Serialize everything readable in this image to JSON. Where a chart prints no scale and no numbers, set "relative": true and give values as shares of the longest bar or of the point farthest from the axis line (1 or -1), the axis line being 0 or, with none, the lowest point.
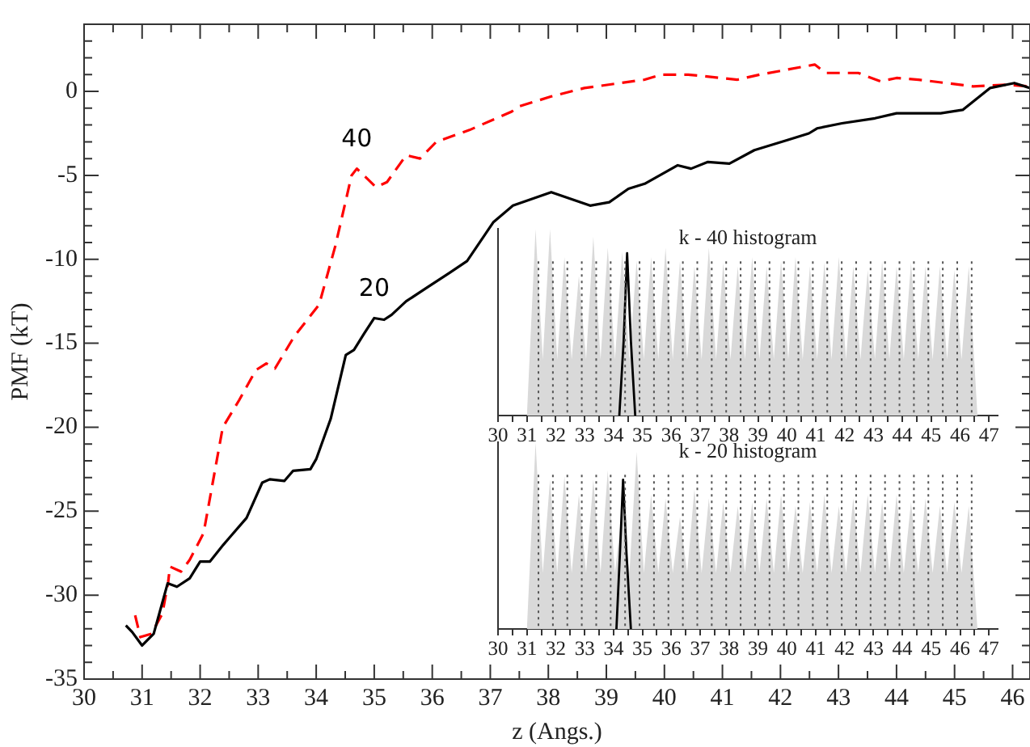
{
  "chart_data": [
    {
      "type": "line",
      "xlabel": "z (Angs.)",
      "ylabel": "PMF (kT)",
      "xlim": [
        30,
        46.3
      ],
      "ylim": [
        -35,
        4
      ],
      "xticks": [
        30,
        {
          "value": 30.5,
          "label": null
        },
        31,
        {
          "value": 31.5,
          "label": null
        },
        32,
        {
          "value": 32.5,
          "label": null
        },
        33,
        {
          "value": 33.5,
          "label": null
        },
        34,
        {
          "value": 34.5,
          "label": null
        },
        35,
        {
          "value": 35.5,
          "label": null
        },
        36,
        {
          "value": 36.5,
          "label": null
        },
        37,
        {
          "value": 37.5,
          "label": null
        },
        38,
        {
          "value": 38.5,
          "label": null
        },
        39,
        {
          "value": 39.5,
          "label": null
        },
        40,
        {
          "value": 40.5,
          "label": null
        },
        41,
        {
          "value": 41.5,
          "label": null
        },
        42,
        {
          "value": 42.5,
          "label": null
        },
        43,
        {
          "value": 43.5,
          "label": null
        },
        44,
        {
          "value": 44.5,
          "label": null
        },
        45,
        {
          "value": 45.5,
          "label": null
        },
        46
      ],
      "yticks": [
        -35,
        {
          "value": -34,
          "label": null
        },
        {
          "value": -33,
          "label": null
        },
        {
          "value": -32,
          "label": null
        },
        {
          "value": -31,
          "label": null
        },
        -30,
        {
          "value": -29,
          "label": null
        },
        {
          "value": -28,
          "label": null
        },
        {
          "value": -27,
          "label": null
        },
        {
          "value": -26,
          "label": null
        },
        -25,
        {
          "value": -24,
          "label": null
        },
        {
          "value": -23,
          "label": null
        },
        {
          "value": -22,
          "label": null
        },
        {
          "value": -21,
          "label": null
        },
        -20,
        {
          "value": -19,
          "label": null
        },
        {
          "value": -18,
          "label": null
        },
        {
          "value": -17,
          "label": null
        },
        {
          "value": -16,
          "label": null
        },
        -15,
        {
          "value": -14,
          "label": null
        },
        {
          "value": -13,
          "label": null
        },
        {
          "value": -12,
          "label": null
        },
        {
          "value": -11,
          "label": null
        },
        -10,
        {
          "value": -9,
          "label": null
        },
        {
          "value": -8,
          "label": null
        },
        {
          "value": -7,
          "label": null
        },
        {
          "value": -6,
          "label": null
        },
        -5,
        {
          "value": -4,
          "label": null
        },
        {
          "value": -3,
          "label": null
        },
        {
          "value": -2,
          "label": null
        },
        {
          "value": -1,
          "label": null
        },
        0,
        {
          "value": 1,
          "label": null
        },
        {
          "value": 2,
          "label": null
        },
        {
          "value": 3,
          "label": null
        }
      ],
      "grid": false,
      "legend": false,
      "marker": "none",
      "series": [
        {
          "color": "#ff0000",
          "line_style": "dashed",
          "x": [
            30.88,
            30.97,
            31.16,
            31.35,
            31.45,
            31.48,
            31.67,
            31.82,
            32.06,
            32.39,
            32.67,
            32.96,
            33.14,
            33.29,
            33.62,
            34.05,
            34.33,
            34.61,
            34.7,
            35.03,
            35.22,
            35.55,
            35.79,
            36.07,
            36.64,
            37.37,
            37.49,
            38.05,
            38.62,
            39.66,
            39.94,
            40.41,
            41.26,
            41.64,
            42.12,
            42.59,
            42.78,
            43.34,
            43.72,
            44.0,
            44.38,
            45.32,
            45.89,
            46.3
          ],
          "values": [
            -31.2,
            -32.5,
            -32.3,
            -31.1,
            -29.2,
            -28.3,
            -28.6,
            -27.9,
            -26.3,
            -20.0,
            -18.4,
            -16.6,
            -16.2,
            -16.5,
            -14.6,
            -12.7,
            -9.2,
            -5.0,
            -4.6,
            -5.7,
            -5.4,
            -3.8,
            -4.0,
            -3.0,
            -2.3,
            -1.2,
            -0.9,
            -0.3,
            0.2,
            0.7,
            1.0,
            1.0,
            0.7,
            1.0,
            1.3,
            1.6,
            1.1,
            1.1,
            0.6,
            0.8,
            0.7,
            0.3,
            0.4,
            0.3
          ]
        },
        {
          "color": "#000000",
          "line_style": "solid",
          "x": [
            30.72,
            30.83,
            31.0,
            31.2,
            31.44,
            31.6,
            31.82,
            32.0,
            32.17,
            32.4,
            32.5,
            32.8,
            33.07,
            33.2,
            33.45,
            33.6,
            33.9,
            34.0,
            34.25,
            34.51,
            34.65,
            34.83,
            35.0,
            35.17,
            35.3,
            35.55,
            35.9,
            36.3,
            36.6,
            37.05,
            37.39,
            38.05,
            38.72,
            39.05,
            39.38,
            39.66,
            40.23,
            40.46,
            40.75,
            41.12,
            41.55,
            42.12,
            42.49,
            42.63,
            43.06,
            43.63,
            44.0,
            44.38,
            44.76,
            45.14,
            45.61,
            46.03,
            46.3
          ],
          "values": [
            -31.8,
            -32.2,
            -33.0,
            -32.3,
            -29.3,
            -29.5,
            -29.0,
            -28.0,
            -28.0,
            -27.0,
            -26.6,
            -25.4,
            -23.3,
            -23.1,
            -23.2,
            -22.6,
            -22.5,
            -21.9,
            -19.5,
            -15.7,
            -15.4,
            -14.4,
            -13.5,
            -13.6,
            -13.3,
            -12.5,
            -11.7,
            -10.8,
            -10.1,
            -7.8,
            -6.8,
            -6.0,
            -6.8,
            -6.6,
            -5.8,
            -5.5,
            -4.4,
            -4.6,
            -4.2,
            -4.3,
            -3.5,
            -2.9,
            -2.5,
            -2.2,
            -1.9,
            -1.6,
            -1.3,
            -1.3,
            -1.3,
            -1.1,
            0.2,
            0.5,
            0.2
          ]
        }
      ],
      "annotations": [
        {
          "text": "40",
          "x": 34.7,
          "y": -4.6
        },
        {
          "text": "20",
          "x": 35.0,
          "y": -13.5
        }
      ]
    },
    {
      "type": "area",
      "title": "k - 40 histogram",
      "relative": true,
      "tick_labels": "x",
      "grid": false,
      "legend": false,
      "marker": "none",
      "xlim": [
        30,
        47.3
      ],
      "xticks": [
        30,
        {
          "value": 30.5,
          "label": null
        },
        31,
        {
          "value": 31.5,
          "label": null
        },
        32,
        {
          "value": 32.5,
          "label": null
        },
        33,
        {
          "value": 33.5,
          "label": null
        },
        34,
        {
          "value": 34.5,
          "label": null
        },
        35,
        {
          "value": 35.5,
          "label": null
        },
        36,
        {
          "value": 36.5,
          "label": null
        },
        37,
        {
          "value": 37.5,
          "label": null
        },
        38,
        {
          "value": 38.5,
          "label": null
        },
        39,
        {
          "value": 39.5,
          "label": null
        },
        40,
        {
          "value": 40.5,
          "label": null
        },
        41,
        {
          "value": 41.5,
          "label": null
        },
        42,
        {
          "value": 42.5,
          "label": null
        },
        43,
        {
          "value": 43.5,
          "label": null
        },
        44,
        {
          "value": 44.5,
          "label": null
        },
        45,
        {
          "value": 45.5,
          "label": null
        },
        46,
        {
          "value": 46.5,
          "label": null
        },
        47
      ],
      "series": [
        {
          "color": "#d9d9d9",
          "x": [
            31.0,
            31.3,
            31.55,
            31.8,
            32.05,
            32.3,
            32.55,
            32.8,
            33.05,
            33.3,
            33.55,
            33.8,
            34.05,
            34.3,
            34.55,
            34.8,
            35.05,
            35.3,
            35.55,
            35.8,
            36.05,
            36.3,
            36.55,
            36.8,
            37.05,
            37.3,
            37.55,
            37.8,
            38.05,
            38.3,
            38.55,
            38.8,
            39.05,
            39.3,
            39.55,
            39.8,
            40.05,
            40.3,
            40.55,
            40.8,
            41.05,
            41.3,
            41.55,
            41.8,
            42.05,
            42.3,
            42.55,
            42.8,
            43.05,
            43.3,
            43.55,
            43.8,
            44.05,
            44.3,
            44.55,
            44.8,
            45.05,
            45.3,
            45.55,
            45.8,
            46.05,
            46.3,
            46.6
          ],
          "values": [
            0,
            1.0,
            0.3,
            1.0,
            0.3,
            0.85,
            0.3,
            0.75,
            0.3,
            0.96,
            0.3,
            0.9,
            0.3,
            0.88,
            0.3,
            0.83,
            0.3,
            0.85,
            0.3,
            0.9,
            0.3,
            0.83,
            0.3,
            0.8,
            0.3,
            0.9,
            0.3,
            0.82,
            0.3,
            0.8,
            0.3,
            0.85,
            0.3,
            0.8,
            0.3,
            0.83,
            0.3,
            0.85,
            0.3,
            0.8,
            0.3,
            0.82,
            0.3,
            0.85,
            0.3,
            0.8,
            0.3,
            0.78,
            0.3,
            0.83,
            0.3,
            0.8,
            0.3,
            0.82,
            0.3,
            0.8,
            0.3,
            0.8,
            0.3,
            0.78,
            0.3,
            0.8,
            0
          ]
        },
        {
          "type": "line",
          "color": "#000000",
          "x": [
            34.2,
            34.35,
            34.47,
            34.6,
            34.75
          ],
          "values": [
            0,
            0.4,
            0.87,
            0.4,
            0
          ]
        }
      ],
      "ref_lines": [
        {
          "axis": "x",
          "value": 31.4,
          "line_style": "dotted"
        },
        {
          "axis": "x",
          "value": 31.9,
          "line_style": "dotted"
        },
        {
          "axis": "x",
          "value": 32.4,
          "line_style": "dotted"
        },
        {
          "axis": "x",
          "value": 32.9,
          "line_style": "dotted"
        },
        {
          "axis": "x",
          "value": 33.4,
          "line_style": "dotted"
        },
        {
          "axis": "x",
          "value": 33.9,
          "line_style": "dotted"
        },
        {
          "axis": "x",
          "value": 34.4,
          "line_style": "dotted"
        },
        {
          "axis": "x",
          "value": 34.9,
          "line_style": "dotted"
        },
        {
          "axis": "x",
          "value": 35.4,
          "line_style": "dotted"
        },
        {
          "axis": "x",
          "value": 35.9,
          "line_style": "dotted"
        },
        {
          "axis": "x",
          "value": 36.4,
          "line_style": "dotted"
        },
        {
          "axis": "x",
          "value": 36.9,
          "line_style": "dotted"
        },
        {
          "axis": "x",
          "value": 37.4,
          "line_style": "dotted"
        },
        {
          "axis": "x",
          "value": 37.9,
          "line_style": "dotted"
        },
        {
          "axis": "x",
          "value": 38.4,
          "line_style": "dotted"
        },
        {
          "axis": "x",
          "value": 38.9,
          "line_style": "dotted"
        },
        {
          "axis": "x",
          "value": 39.4,
          "line_style": "dotted"
        },
        {
          "axis": "x",
          "value": 39.9,
          "line_style": "dotted"
        },
        {
          "axis": "x",
          "value": 40.4,
          "line_style": "dotted"
        },
        {
          "axis": "x",
          "value": 40.9,
          "line_style": "dotted"
        },
        {
          "axis": "x",
          "value": 41.4,
          "line_style": "dotted"
        },
        {
          "axis": "x",
          "value": 41.9,
          "line_style": "dotted"
        },
        {
          "axis": "x",
          "value": 42.4,
          "line_style": "dotted"
        },
        {
          "axis": "x",
          "value": 42.9,
          "line_style": "dotted"
        },
        {
          "axis": "x",
          "value": 43.4,
          "line_style": "dotted"
        },
        {
          "axis": "x",
          "value": 43.9,
          "line_style": "dotted"
        },
        {
          "axis": "x",
          "value": 44.4,
          "line_style": "dotted"
        },
        {
          "axis": "x",
          "value": 44.9,
          "line_style": "dotted"
        },
        {
          "axis": "x",
          "value": 45.4,
          "line_style": "dotted"
        },
        {
          "axis": "x",
          "value": 45.9,
          "line_style": "dotted"
        },
        {
          "axis": "x",
          "value": 46.4,
          "line_style": "dotted"
        }
      ]
    },
    {
      "type": "area",
      "title": "k - 20 histogram",
      "relative": true,
      "tick_labels": "x",
      "grid": false,
      "legend": false,
      "marker": "none",
      "xlim": [
        30,
        47.3
      ],
      "xticks": [
        30,
        {
          "value": 30.5,
          "label": null
        },
        31,
        {
          "value": 31.5,
          "label": null
        },
        32,
        {
          "value": 32.5,
          "label": null
        },
        33,
        {
          "value": 33.5,
          "label": null
        },
        34,
        {
          "value": 34.5,
          "label": null
        },
        35,
        {
          "value": 35.5,
          "label": null
        },
        36,
        {
          "value": 36.5,
          "label": null
        },
        37,
        {
          "value": 37.5,
          "label": null
        },
        38,
        {
          "value": 38.5,
          "label": null
        },
        39,
        {
          "value": 39.5,
          "label": null
        },
        40,
        {
          "value": 40.5,
          "label": null
        },
        41,
        {
          "value": 41.5,
          "label": null
        },
        42,
        {
          "value": 42.5,
          "label": null
        },
        43,
        {
          "value": 43.5,
          "label": null
        },
        44,
        {
          "value": 44.5,
          "label": null
        },
        45,
        {
          "value": 45.5,
          "label": null
        },
        46,
        {
          "value": 46.5,
          "label": null
        },
        47
      ],
      "series": [
        {
          "color": "#d9d9d9",
          "x": [
            31.0,
            31.3,
            31.55,
            31.8,
            32.05,
            32.3,
            32.55,
            32.8,
            33.05,
            33.3,
            33.55,
            33.8,
            34.05,
            34.3,
            34.55,
            34.8,
            35.05,
            35.3,
            35.55,
            35.8,
            36.05,
            36.3,
            36.55,
            36.8,
            37.05,
            37.3,
            37.55,
            37.8,
            38.05,
            38.3,
            38.55,
            38.8,
            39.05,
            39.3,
            39.55,
            39.8,
            40.05,
            40.3,
            40.55,
            40.8,
            41.05,
            41.3,
            41.55,
            41.8,
            42.05,
            42.3,
            42.55,
            42.8,
            43.05,
            43.3,
            43.55,
            43.8,
            44.05,
            44.3,
            44.55,
            44.8,
            45.05,
            45.3,
            45.55,
            45.8,
            46.05,
            46.3,
            46.6
          ],
          "values": [
            0,
            1.0,
            0.3,
            0.8,
            0.3,
            0.82,
            0.3,
            0.72,
            0.3,
            0.8,
            0.3,
            0.85,
            0.3,
            0.65,
            0.3,
            0.95,
            0.3,
            0.72,
            0.3,
            0.7,
            0.3,
            0.6,
            0.3,
            0.75,
            0.3,
            0.7,
            0.3,
            0.68,
            0.3,
            0.66,
            0.3,
            0.68,
            0.3,
            0.7,
            0.3,
            0.72,
            0.3,
            0.66,
            0.3,
            0.68,
            0.3,
            0.72,
            0.3,
            0.66,
            0.3,
            0.7,
            0.3,
            0.72,
            0.3,
            0.68,
            0.3,
            0.72,
            0.3,
            0.68,
            0.3,
            0.7,
            0.3,
            0.66,
            0.3,
            0.68,
            0.3,
            0.66,
            0
          ]
        },
        {
          "type": "line",
          "color": "#000000",
          "x": [
            34.1,
            34.22,
            34.33,
            34.45,
            34.6
          ],
          "values": [
            0,
            0.4,
            0.8,
            0.4,
            0
          ]
        }
      ],
      "ref_lines": [
        {
          "axis": "x",
          "value": 31.4,
          "line_style": "dotted"
        },
        {
          "axis": "x",
          "value": 31.9,
          "line_style": "dotted"
        },
        {
          "axis": "x",
          "value": 32.4,
          "line_style": "dotted"
        },
        {
          "axis": "x",
          "value": 32.9,
          "line_style": "dotted"
        },
        {
          "axis": "x",
          "value": 33.4,
          "line_style": "dotted"
        },
        {
          "axis": "x",
          "value": 33.9,
          "line_style": "dotted"
        },
        {
          "axis": "x",
          "value": 34.4,
          "line_style": "dotted"
        },
        {
          "axis": "x",
          "value": 34.9,
          "line_style": "dotted"
        },
        {
          "axis": "x",
          "value": 35.4,
          "line_style": "dotted"
        },
        {
          "axis": "x",
          "value": 35.9,
          "line_style": "dotted"
        },
        {
          "axis": "x",
          "value": 36.4,
          "line_style": "dotted"
        },
        {
          "axis": "x",
          "value": 36.9,
          "line_style": "dotted"
        },
        {
          "axis": "x",
          "value": 37.4,
          "line_style": "dotted"
        },
        {
          "axis": "x",
          "value": 37.9,
          "line_style": "dotted"
        },
        {
          "axis": "x",
          "value": 38.4,
          "line_style": "dotted"
        },
        {
          "axis": "x",
          "value": 38.9,
          "line_style": "dotted"
        },
        {
          "axis": "x",
          "value": 39.4,
          "line_style": "dotted"
        },
        {
          "axis": "x",
          "value": 39.9,
          "line_style": "dotted"
        },
        {
          "axis": "x",
          "value": 40.4,
          "line_style": "dotted"
        },
        {
          "axis": "x",
          "value": 40.9,
          "line_style": "dotted"
        },
        {
          "axis": "x",
          "value": 41.4,
          "line_style": "dotted"
        },
        {
          "axis": "x",
          "value": 41.9,
          "line_style": "dotted"
        },
        {
          "axis": "x",
          "value": 42.4,
          "line_style": "dotted"
        },
        {
          "axis": "x",
          "value": 42.9,
          "line_style": "dotted"
        },
        {
          "axis": "x",
          "value": 43.4,
          "line_style": "dotted"
        },
        {
          "axis": "x",
          "value": 43.9,
          "line_style": "dotted"
        },
        {
          "axis": "x",
          "value": 44.4,
          "line_style": "dotted"
        },
        {
          "axis": "x",
          "value": 44.9,
          "line_style": "dotted"
        },
        {
          "axis": "x",
          "value": 45.4,
          "line_style": "dotted"
        },
        {
          "axis": "x",
          "value": 45.9,
          "line_style": "dotted"
        },
        {
          "axis": "x",
          "value": 46.4,
          "line_style": "dotted"
        }
      ]
    }
  ]
}
